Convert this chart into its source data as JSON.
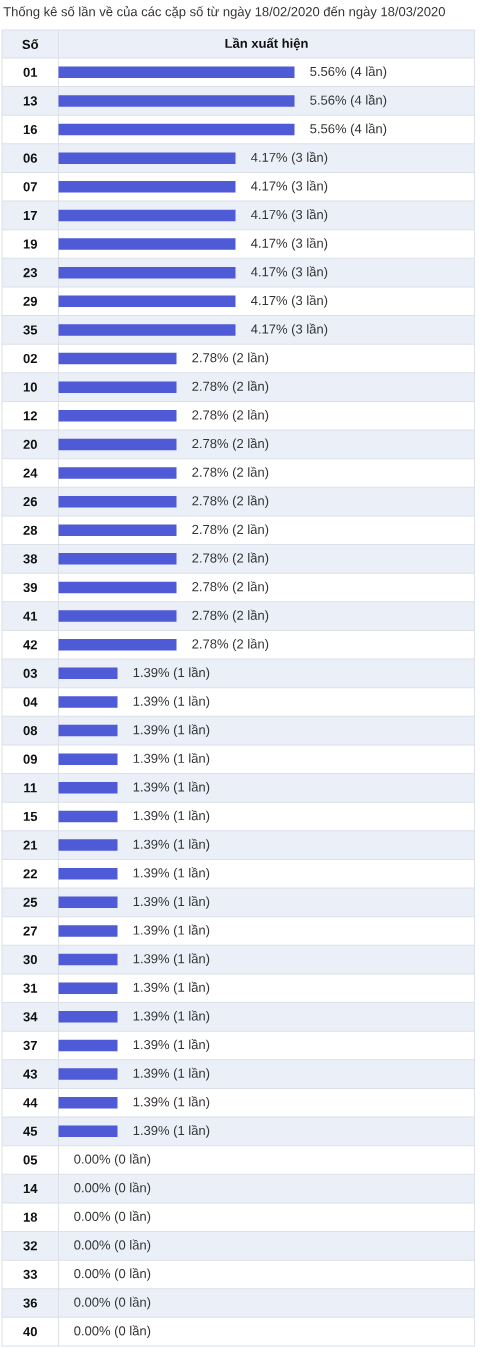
{
  "chart_data": {
    "type": "bar",
    "orientation": "horizontal",
    "title": "Thống kê số lần về của các cặp số từ ngày 18/02/2020 đến ngày 18/03/2020",
    "xlabel": "Lần xuất hiện",
    "ylabel": "Số",
    "categories": [
      "01",
      "13",
      "16",
      "06",
      "07",
      "17",
      "19",
      "23",
      "29",
      "35",
      "02",
      "10",
      "12",
      "20",
      "24",
      "26",
      "28",
      "38",
      "39",
      "41",
      "42",
      "03",
      "04",
      "08",
      "09",
      "11",
      "15",
      "21",
      "22",
      "25",
      "27",
      "30",
      "31",
      "34",
      "37",
      "43",
      "44",
      "45",
      "05",
      "14",
      "18",
      "32",
      "33",
      "36",
      "40"
    ],
    "values": [
      5.56,
      5.56,
      5.56,
      4.17,
      4.17,
      4.17,
      4.17,
      4.17,
      4.17,
      4.17,
      2.78,
      2.78,
      2.78,
      2.78,
      2.78,
      2.78,
      2.78,
      2.78,
      2.78,
      2.78,
      2.78,
      1.39,
      1.39,
      1.39,
      1.39,
      1.39,
      1.39,
      1.39,
      1.39,
      1.39,
      1.39,
      1.39,
      1.39,
      1.39,
      1.39,
      1.39,
      1.39,
      1.39,
      0.0,
      0.0,
      0.0,
      0.0,
      0.0,
      0.0,
      0.0
    ],
    "value_labels": [
      "5.56% (4 lần)",
      "5.56% (4 lần)",
      "5.56% (4 lần)",
      "4.17% (3 lần)",
      "4.17% (3 lần)",
      "4.17% (3 lần)",
      "4.17% (3 lần)",
      "4.17% (3 lần)",
      "4.17% (3 lần)",
      "4.17% (3 lần)",
      "2.78% (2 lần)",
      "2.78% (2 lần)",
      "2.78% (2 lần)",
      "2.78% (2 lần)",
      "2.78% (2 lần)",
      "2.78% (2 lần)",
      "2.78% (2 lần)",
      "2.78% (2 lần)",
      "2.78% (2 lần)",
      "2.78% (2 lần)",
      "2.78% (2 lần)",
      "1.39% (1 lần)",
      "1.39% (1 lần)",
      "1.39% (1 lần)",
      "1.39% (1 lần)",
      "1.39% (1 lần)",
      "1.39% (1 lần)",
      "1.39% (1 lần)",
      "1.39% (1 lần)",
      "1.39% (1 lần)",
      "1.39% (1 lần)",
      "1.39% (1 lần)",
      "1.39% (1 lần)",
      "1.39% (1 lần)",
      "1.39% (1 lần)",
      "1.39% (1 lần)",
      "1.39% (1 lần)",
      "1.39% (1 lần)",
      "0.00% (0 lần)",
      "0.00% (0 lần)",
      "0.00% (0 lần)",
      "0.00% (0 lần)",
      "0.00% (0 lần)",
      "0.00% (0 lần)",
      "0.00% (0 lần)"
    ],
    "color": "#4f5ad6"
  }
}
